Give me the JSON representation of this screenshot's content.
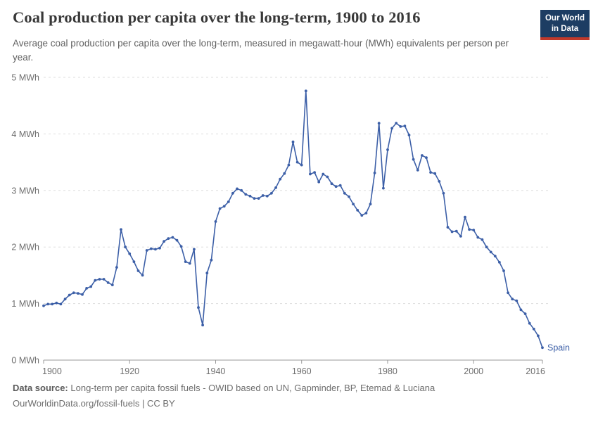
{
  "header": {
    "title": "Coal production per capita over the long-term, 1900 to 2016",
    "subtitle": "Average coal production per capita over the long-term, measured in megawatt-hour (MWh) equivalents per person per year.",
    "logo_line1": "Our World",
    "logo_line2": "in Data"
  },
  "footer": {
    "datasource_label": "Data source:",
    "datasource_text": "Long-term per capita fossil fuels - OWID based on UN, Gapminder, BP, Etemad & Luciana",
    "license_text": "OurWorldinData.org/fossil-fuels | CC BY"
  },
  "colors": {
    "line": "#3c5fa7",
    "entity_label": "#3c5fa7",
    "grid": "#dddddd",
    "axis": "#999999",
    "tick_text": "#6e6e6e",
    "logo_bg": "#1d3d63",
    "logo_stripe": "#c0392b"
  },
  "chart_data": {
    "type": "line",
    "title": "Coal production per capita over the long-term, 1900 to 2016",
    "entity": "Spain",
    "unit": "MWh",
    "xlabel": "",
    "ylabel": "",
    "xlim": [
      1900,
      2016
    ],
    "ylim": [
      0,
      5
    ],
    "grid": true,
    "legend_position": "end-of-line",
    "x_ticks": [
      1900,
      1920,
      1940,
      1960,
      1980,
      2000,
      2016
    ],
    "y_ticks": [
      0,
      1,
      2,
      3,
      4,
      5
    ],
    "years": [
      1900,
      1901,
      1902,
      1903,
      1904,
      1905,
      1906,
      1907,
      1908,
      1909,
      1910,
      1911,
      1912,
      1913,
      1914,
      1915,
      1916,
      1917,
      1918,
      1919,
      1920,
      1921,
      1922,
      1923,
      1924,
      1925,
      1926,
      1927,
      1928,
      1929,
      1930,
      1931,
      1932,
      1933,
      1934,
      1935,
      1936,
      1937,
      1938,
      1939,
      1940,
      1941,
      1942,
      1943,
      1944,
      1945,
      1946,
      1947,
      1948,
      1949,
      1950,
      1951,
      1952,
      1953,
      1954,
      1955,
      1956,
      1957,
      1958,
      1959,
      1960,
      1961,
      1962,
      1963,
      1964,
      1965,
      1966,
      1967,
      1968,
      1969,
      1970,
      1971,
      1972,
      1973,
      1974,
      1975,
      1976,
      1977,
      1978,
      1979,
      1980,
      1981,
      1982,
      1983,
      1984,
      1985,
      1986,
      1987,
      1988,
      1989,
      1990,
      1991,
      1992,
      1993,
      1994,
      1995,
      1996,
      1997,
      1998,
      1999,
      2000,
      2001,
      2002,
      2003,
      2004,
      2005,
      2006,
      2007,
      2008,
      2009,
      2010,
      2011,
      2012,
      2013,
      2014,
      2015,
      2016
    ],
    "values": [
      0.96,
      0.99,
      0.99,
      1.01,
      0.99,
      1.08,
      1.15,
      1.19,
      1.18,
      1.16,
      1.27,
      1.3,
      1.41,
      1.43,
      1.43,
      1.37,
      1.33,
      1.64,
      2.31,
      2.0,
      1.88,
      1.74,
      1.58,
      1.5,
      1.94,
      1.97,
      1.96,
      1.98,
      2.1,
      2.15,
      2.17,
      2.12,
      2.01,
      1.74,
      1.71,
      1.96,
      0.93,
      0.62,
      1.54,
      1.77,
      2.45,
      2.68,
      2.72,
      2.8,
      2.95,
      3.03,
      3.0,
      2.93,
      2.9,
      2.86,
      2.86,
      2.91,
      2.9,
      2.95,
      3.05,
      3.2,
      3.3,
      3.45,
      3.86,
      3.5,
      3.45,
      4.76,
      3.29,
      3.32,
      3.15,
      3.29,
      3.24,
      3.12,
      3.07,
      3.09,
      2.95,
      2.89,
      2.76,
      2.65,
      2.56,
      2.6,
      2.76,
      3.31,
      4.19,
      3.04,
      3.72,
      4.1,
      4.19,
      4.13,
      4.14,
      3.98,
      3.55,
      3.36,
      3.62,
      3.58,
      3.32,
      3.3,
      3.16,
      2.95,
      2.35,
      2.27,
      2.28,
      2.19,
      2.53,
      2.31,
      2.3,
      2.17,
      2.13,
      2.0,
      1.91,
      1.84,
      1.73,
      1.58,
      1.19,
      1.08,
      1.05,
      0.89,
      0.82,
      0.65,
      0.55,
      0.43,
      0.22
    ]
  }
}
